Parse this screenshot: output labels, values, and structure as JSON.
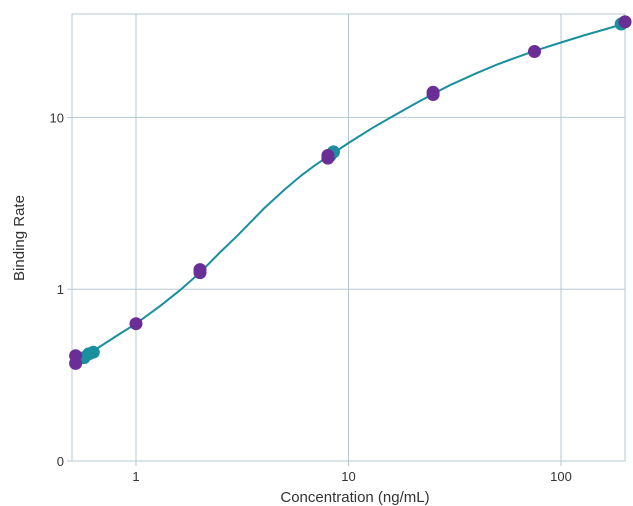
{
  "chart_data": {
    "type": "scatter",
    "title": "",
    "xlabel": "Concentration (ng/mL)",
    "ylabel": "Binding Rate",
    "xscale": "log",
    "yscale": "log",
    "xlim": [
      0.5,
      200
    ],
    "ylim": [
      0.1,
      40
    ],
    "grid": true,
    "x_ticks": [
      {
        "value": 1,
        "label": "1"
      },
      {
        "value": 10,
        "label": "10"
      },
      {
        "value": 100,
        "label": "100"
      }
    ],
    "y_ticks": [
      {
        "value": 0.1,
        "label": "0"
      },
      {
        "value": 1,
        "label": "1"
      },
      {
        "value": 10,
        "label": "10"
      }
    ],
    "colors": {
      "fit": "#1a8f9e",
      "teal_points": "#1a8f9e",
      "purple_points": "#6a2e96",
      "grid": "#b7c8d2",
      "frame": "#b7c8d2"
    },
    "fit_curve": {
      "x": [
        0.5,
        0.6,
        0.8,
        1,
        1.3,
        1.6,
        2,
        2.5,
        3,
        4,
        5,
        6,
        7,
        8,
        10,
        13,
        16,
        20,
        25,
        30,
        40,
        50,
        60,
        75,
        100,
        130,
        160,
        200
      ],
      "y": [
        0.37,
        0.42,
        0.53,
        0.63,
        0.8,
        0.98,
        1.25,
        1.65,
        2.05,
        2.95,
        3.8,
        4.6,
        5.3,
        5.9,
        7.1,
        8.7,
        10.1,
        11.8,
        13.7,
        15.4,
        18.1,
        20.3,
        22.1,
        24.4,
        27.3,
        30.2,
        32.5,
        35.2
      ]
    },
    "series": [
      {
        "color": "teal",
        "x": [
          0.57,
          0.6,
          0.63,
          8.5,
          8.2,
          192,
          200
        ],
        "y": [
          0.4,
          0.42,
          0.43,
          6.3,
          6.0,
          35.0,
          36.0
        ]
      },
      {
        "color": "purple",
        "x": [
          0.52,
          0.52,
          1.0,
          2.0,
          2.0,
          8.0,
          8.0,
          25,
          25,
          75,
          200
        ],
        "y": [
          0.41,
          0.37,
          0.63,
          1.3,
          1.25,
          6.0,
          5.8,
          14.0,
          13.6,
          24.2,
          36.0
        ]
      }
    ]
  }
}
